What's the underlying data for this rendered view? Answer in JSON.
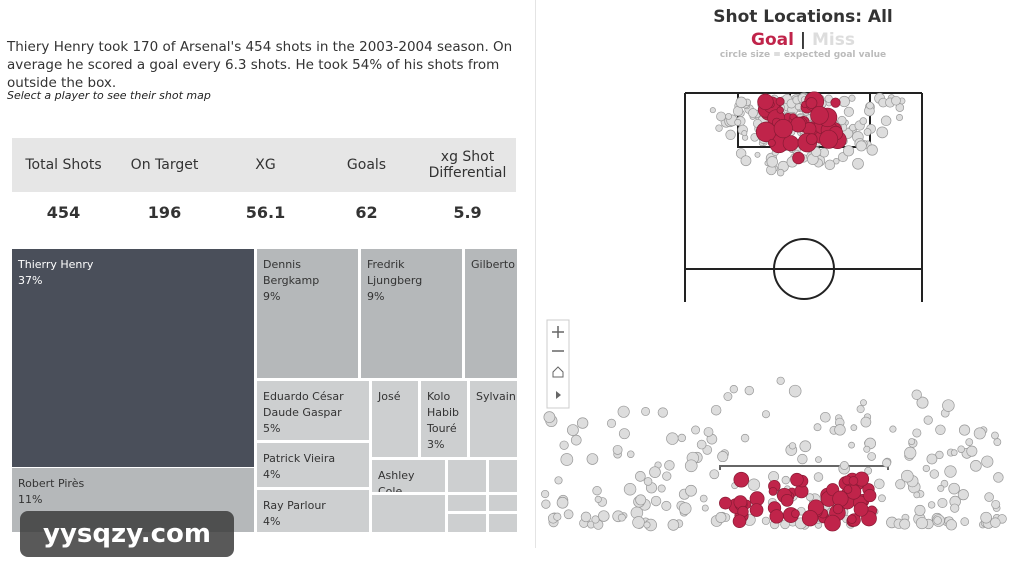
{
  "intro": {
    "summary": "Thiery Henry took 170 of Arsenal's 454 shots in the 2003-2004 season. On average he scored a goal every 6.3 shots. He took 54% of his shots from outside the box.",
    "hint": "Select a player to see their shot map"
  },
  "kpis": [
    {
      "label": "Total Shots",
      "value": 454
    },
    {
      "label": "On Target",
      "value": 196
    },
    {
      "label": "XG",
      "value": 56.1
    },
    {
      "label": "Goals",
      "value": 62
    },
    {
      "label": "xg Shot Differential",
      "value": 5.9
    }
  ],
  "treemap": [
    {
      "name": "Thierry Henry",
      "share": "37%"
    },
    {
      "name": "Robert Pirès",
      "share": "11%"
    },
    {
      "name": "Dennis Bergkamp",
      "share": "9%"
    },
    {
      "name": "Fredrik Ljungberg",
      "share": "9%"
    },
    {
      "name": "Gilberto"
    },
    {
      "name": "Eduardo César Daude Gaspar",
      "share": "5%"
    },
    {
      "name": "José"
    },
    {
      "name": "Kolo Habib Touré",
      "share": "3%"
    },
    {
      "name": "Sylvain"
    },
    {
      "name": "Patrick Vieira",
      "share": "4%"
    },
    {
      "name": "Ray Parlour",
      "share": "4%"
    },
    {
      "name": "Ashley Cole"
    }
  ],
  "shot_map": {
    "title": "Shot Locations: All",
    "legend_goal": "Goal",
    "legend_sep": "|",
    "legend_miss": "Miss",
    "note": "circle size = expected goal value"
  },
  "watermark": "yysqzy.com"
}
